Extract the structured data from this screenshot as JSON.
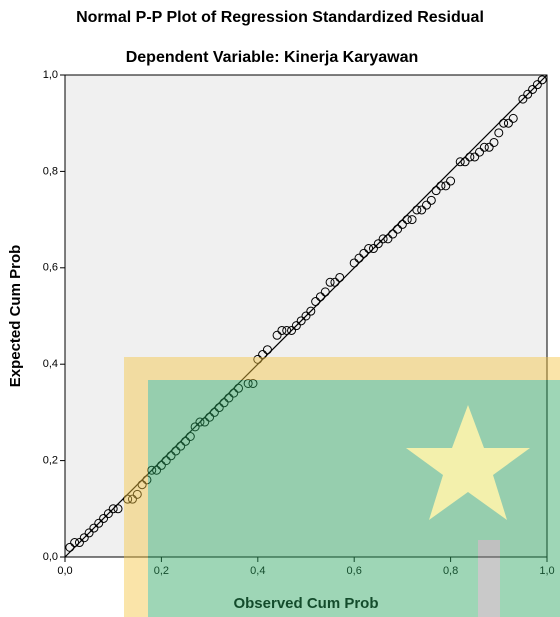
{
  "chart_data": {
    "type": "scatter",
    "title": "Normal P-P Plot of Regression Standardized Residual",
    "subtitle": "Dependent Variable: Kinerja Karyawan",
    "x_label": "Observed Cum Prob",
    "y_label": "Expected Cum Prob",
    "xlim": [
      0,
      1
    ],
    "ylim": [
      0,
      1
    ],
    "xticks": [
      {
        "value": 0,
        "label": "0,0"
      },
      {
        "value": 0.2,
        "label": "0,2"
      },
      {
        "value": 0.4,
        "label": "0,4"
      },
      {
        "value": 0.6,
        "label": "0,6"
      },
      {
        "value": 0.8,
        "label": "0,8"
      },
      {
        "value": 1,
        "label": "1,0"
      }
    ],
    "yticks": [
      {
        "value": 0,
        "label": "0,0"
      },
      {
        "value": 0.2,
        "label": "0,2"
      },
      {
        "value": 0.4,
        "label": "0,4"
      },
      {
        "value": 0.6,
        "label": "0,6"
      },
      {
        "value": 0.8,
        "label": "0,8"
      },
      {
        "value": 1,
        "label": "1,0"
      }
    ],
    "color": "#000000",
    "x": [
      0.01,
      0.02,
      0.03,
      0.04,
      0.05,
      0.06,
      0.07,
      0.08,
      0.09,
      0.1,
      0.11,
      0.13,
      0.14,
      0.15,
      0.16,
      0.17,
      0.18,
      0.19,
      0.2,
      0.21,
      0.22,
      0.23,
      0.24,
      0.25,
      0.26,
      0.27,
      0.28,
      0.29,
      0.3,
      0.31,
      0.32,
      0.33,
      0.34,
      0.35,
      0.36,
      0.38,
      0.39,
      0.4,
      0.41,
      0.42,
      0.44,
      0.45,
      0.46,
      0.47,
      0.48,
      0.49,
      0.5,
      0.51,
      0.52,
      0.53,
      0.54,
      0.55,
      0.56,
      0.57,
      0.6,
      0.61,
      0.62,
      0.63,
      0.64,
      0.65,
      0.66,
      0.67,
      0.68,
      0.69,
      0.7,
      0.71,
      0.72,
      0.73,
      0.74,
      0.75,
      0.76,
      0.77,
      0.78,
      0.79,
      0.8,
      0.82,
      0.83,
      0.84,
      0.85,
      0.86,
      0.87,
      0.88,
      0.89,
      0.9,
      0.91,
      0.92,
      0.93,
      0.95,
      0.96,
      0.97,
      0.98,
      0.99
    ],
    "values": [
      0.02,
      0.03,
      0.03,
      0.04,
      0.05,
      0.06,
      0.07,
      0.08,
      0.09,
      0.1,
      0.1,
      0.12,
      0.12,
      0.13,
      0.15,
      0.16,
      0.18,
      0.18,
      0.19,
      0.2,
      0.21,
      0.22,
      0.23,
      0.24,
      0.25,
      0.27,
      0.28,
      0.28,
      0.29,
      0.3,
      0.31,
      0.32,
      0.33,
      0.34,
      0.35,
      0.36,
      0.36,
      0.41,
      0.42,
      0.43,
      0.46,
      0.47,
      0.47,
      0.47,
      0.48,
      0.49,
      0.5,
      0.51,
      0.53,
      0.54,
      0.55,
      0.57,
      0.57,
      0.58,
      0.61,
      0.62,
      0.63,
      0.64,
      0.64,
      0.65,
      0.66,
      0.66,
      0.67,
      0.68,
      0.69,
      0.7,
      0.7,
      0.72,
      0.72,
      0.73,
      0.74,
      0.76,
      0.77,
      0.77,
      0.78,
      0.82,
      0.82,
      0.83,
      0.83,
      0.84,
      0.85,
      0.85,
      0.86,
      0.88,
      0.9,
      0.9,
      0.91,
      0.95,
      0.96,
      0.97,
      0.98,
      0.99
    ]
  }
}
